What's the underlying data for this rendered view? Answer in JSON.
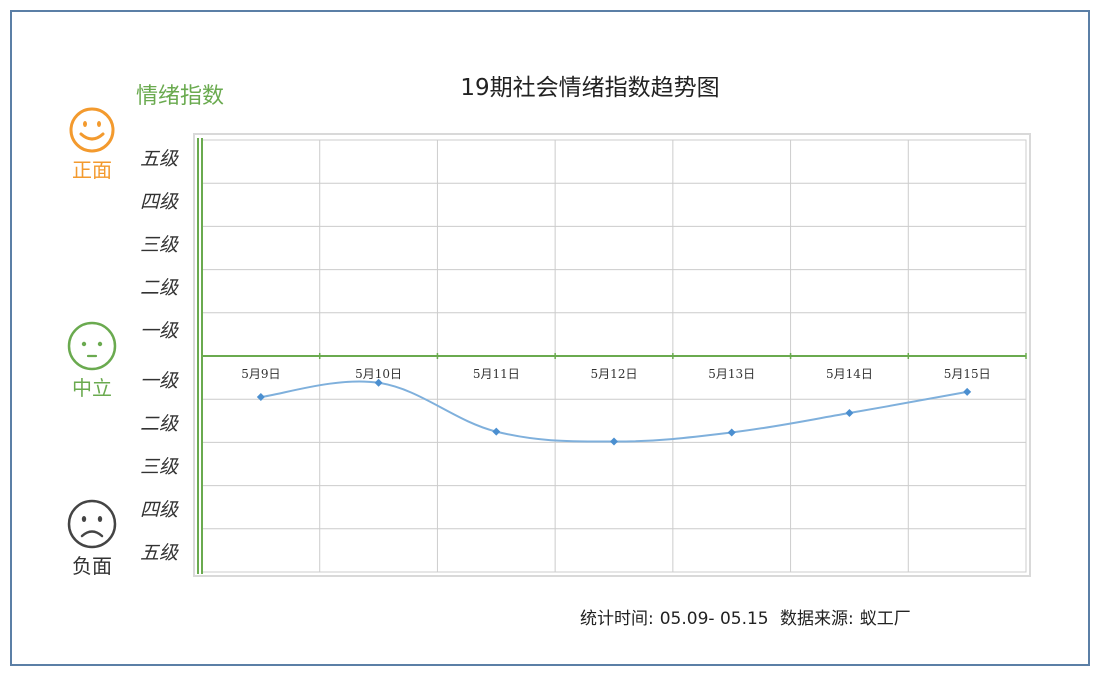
{
  "ylabel_text": "情绪指数",
  "faces": {
    "positive": {
      "label": "正面",
      "color": "#f39a2e"
    },
    "neutral": {
      "label": "中立",
      "color": "#6aaa4f"
    },
    "negative": {
      "label": "负面",
      "color": "#444444"
    }
  },
  "levels_positive": [
    "五级",
    "四级",
    "三级",
    "二级",
    "一级"
  ],
  "levels_negative": [
    "一级",
    "二级",
    "三级",
    "四级",
    "五级"
  ],
  "footer": {
    "time_label": "统计时间:",
    "time_range": "05.09- 05.15",
    "source_label": "数据来源:",
    "source": "蚁工厂"
  },
  "colors": {
    "line": "#7fb0dc",
    "marker": "#4b8fd0",
    "axis": "#6aaa4f",
    "grid": "#cccccc"
  },
  "chart_data": {
    "type": "line",
    "title": "19期社会情绪指数趋势图",
    "ylabel": "情绪指数",
    "categories": [
      "5月9日",
      "5月10日",
      "5月11日",
      "5月12日",
      "5月13日",
      "5月14日",
      "5月15日"
    ],
    "series": [
      {
        "values": [
          -0.95,
          -0.62,
          -1.75,
          -1.98,
          -1.77,
          -1.32,
          -0.83
        ]
      }
    ],
    "ylim": [
      -5,
      5
    ],
    "grid": true
  }
}
